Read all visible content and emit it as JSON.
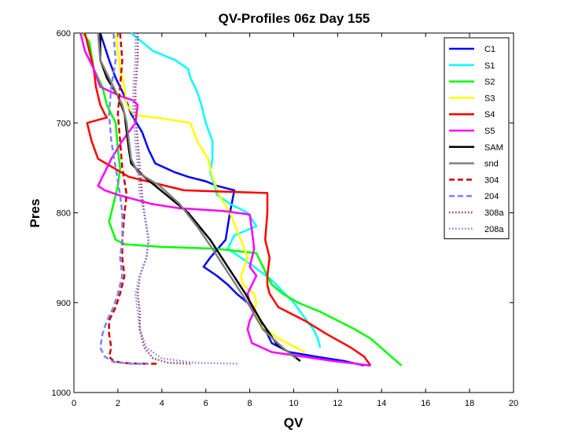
{
  "chart_data": {
    "type": "line",
    "title": "QV-Profiles 06z Day 155",
    "xlabel": "QV",
    "ylabel": "Pres",
    "xlim": [
      0,
      20
    ],
    "ylim": [
      1000,
      600
    ],
    "y_reversed": true,
    "xticks": [
      "0",
      "2",
      "4",
      "6",
      "8",
      "10",
      "12",
      "14",
      "16",
      "18",
      "20"
    ],
    "yticks": [
      "600",
      "700",
      "800",
      "900",
      "1000"
    ],
    "grid": false,
    "legend_position": "top-right",
    "series": [
      {
        "name": "C1",
        "color": "#0000ff",
        "style": "solid",
        "x": [
          1.2,
          1.4,
          1.6,
          1.9,
          2.3,
          2.6,
          3.1,
          3.4,
          3.7,
          4.6,
          5.2,
          6.0,
          6.5,
          7.3,
          7.1,
          6.9,
          6.2,
          5.9,
          6.5,
          7.0,
          7.4,
          7.9,
          8.3,
          8.7,
          9.0,
          9.8,
          11.0,
          12.3,
          13.2
        ],
        "y": [
          600,
          615,
          630,
          650,
          670,
          690,
          710,
          730,
          745,
          755,
          760,
          765,
          770,
          775,
          800,
          830,
          850,
          860,
          870,
          880,
          890,
          900,
          915,
          930,
          945,
          955,
          960,
          965,
          970
        ]
      },
      {
        "name": "S1",
        "color": "#00ffff",
        "style": "solid",
        "x": [
          2.6,
          3.6,
          4.6,
          5.2,
          5.3,
          5.6,
          5.8,
          6.0,
          6.3,
          6.3,
          6.2,
          6.4,
          6.5,
          7.1,
          7.9,
          8.3,
          7.8,
          7.3,
          7.0,
          7.6,
          8.2,
          9.0,
          10.0,
          10.6,
          10.9,
          11.1,
          11.2
        ],
        "y": [
          600,
          620,
          630,
          640,
          650,
          665,
          680,
          700,
          720,
          740,
          755,
          770,
          780,
          790,
          800,
          815,
          820,
          825,
          840,
          850,
          860,
          875,
          900,
          920,
          930,
          940,
          950
        ]
      },
      {
        "name": "S2",
        "color": "#00ff00",
        "style": "solid",
        "x": [
          0.4,
          0.7,
          0.9,
          1.3,
          1.5,
          1.9,
          2.0,
          2.1,
          2.0,
          1.8,
          1.6,
          1.9,
          2.3,
          4.0,
          6.5,
          8.3,
          8.5,
          8.8,
          9.0,
          9.5,
          10.2,
          11.2,
          12.0,
          12.8,
          13.5,
          14.2,
          14.9
        ],
        "y": [
          600,
          610,
          640,
          660,
          680,
          700,
          730,
          750,
          770,
          790,
          810,
          830,
          835,
          838,
          840,
          845,
          855,
          870,
          880,
          890,
          900,
          910,
          920,
          930,
          940,
          955,
          970
        ]
      },
      {
        "name": "S3",
        "color": "#ffff00",
        "style": "solid",
        "x": [
          1.9,
          2.0,
          2.1,
          2.3,
          2.4,
          2.7,
          3.0,
          4.0,
          5.3,
          5.6,
          6.1,
          6.3,
          6.6,
          7.1,
          7.6,
          7.9,
          7.6,
          7.7,
          8.2,
          8.3,
          8.2,
          8.5,
          9.3,
          10.5
        ],
        "y": [
          600,
          620,
          640,
          660,
          680,
          690,
          692,
          695,
          700,
          720,
          740,
          760,
          780,
          800,
          830,
          850,
          870,
          880,
          890,
          900,
          910,
          925,
          940,
          955
        ]
      },
      {
        "name": "S4",
        "color": "#ff0000",
        "style": "solid",
        "x": [
          0.5,
          0.7,
          0.9,
          1.0,
          1.2,
          1.4,
          1.5,
          1.2,
          0.6,
          0.8,
          1.1,
          2.5,
          5.0,
          8.8,
          8.8,
          8.7,
          8.9,
          8.8,
          8.8,
          8.9,
          9.3,
          10.5,
          11.5,
          12.6,
          13.2,
          13.5
        ],
        "y": [
          600,
          620,
          640,
          660,
          680,
          690,
          694,
          696,
          700,
          720,
          740,
          760,
          775,
          778,
          800,
          830,
          850,
          870,
          880,
          890,
          905,
          920,
          935,
          950,
          960,
          970
        ]
      },
      {
        "name": "S5",
        "color": "#ff00ff",
        "style": "solid",
        "x": [
          0.3,
          0.5,
          0.9,
          1.2,
          2.1,
          2.7,
          2.9,
          2.8,
          2.2,
          1.7,
          1.3,
          1.1,
          1.4,
          2.0,
          3.5,
          4.8,
          6.8,
          8.0,
          8.1,
          8.2,
          8.0,
          8.3,
          8.1,
          7.9,
          8.0,
          8.2,
          8.0,
          7.9,
          8.1,
          9.0,
          10.4,
          11.8,
          12.5,
          13.5
        ],
        "y": [
          600,
          620,
          640,
          660,
          670,
          675,
          680,
          700,
          720,
          740,
          760,
          770,
          775,
          780,
          790,
          795,
          798,
          802,
          820,
          840,
          860,
          870,
          880,
          890,
          900,
          910,
          920,
          930,
          945,
          955,
          960,
          965,
          967,
          970
        ]
      },
      {
        "name": "SAM",
        "color": "#000000",
        "style": "solid",
        "width": 2.5,
        "x": [
          1.2,
          1.2,
          1.5,
          2.0,
          2.3,
          2.4,
          2.5,
          2.6,
          3.2,
          4.2,
          5.2,
          6.2,
          7.0,
          7.8,
          8.5,
          9.2,
          10.3
        ],
        "y": [
          600,
          630,
          650,
          670,
          690,
          710,
          730,
          745,
          760,
          780,
          800,
          830,
          860,
          890,
          920,
          945,
          965
        ]
      },
      {
        "name": "snd",
        "color": "#808080",
        "style": "solid",
        "width": 2.5,
        "x": [
          1.1,
          1.2,
          1.6,
          2.2,
          2.4,
          2.5,
          2.6,
          2.9,
          3.9,
          4.8,
          5.6,
          6.3,
          7.1,
          7.9,
          8.6,
          9.5,
          10.1
        ],
        "y": [
          600,
          630,
          650,
          680,
          700,
          720,
          740,
          755,
          770,
          790,
          815,
          840,
          870,
          900,
          930,
          950,
          962
        ]
      },
      {
        "name": "304",
        "color": "#cc0000",
        "style": "dashed",
        "x": [
          2.1,
          2.2,
          2.1,
          2.0,
          2.1,
          2.2,
          2.4,
          2.3,
          2.2,
          2.2,
          2.3,
          2.1,
          1.9,
          1.6,
          1.6,
          1.7,
          1.6,
          1.8,
          2.2,
          3.0,
          3.8
        ],
        "y": [
          600,
          630,
          660,
          690,
          720,
          750,
          780,
          800,
          830,
          850,
          870,
          890,
          905,
          920,
          935,
          950,
          960,
          965,
          967,
          968,
          968
        ]
      },
      {
        "name": "204",
        "color": "#8080ff",
        "style": "dashed",
        "x": [
          1.8,
          1.9,
          1.7,
          1.6,
          1.7,
          1.9,
          2.1,
          2.2,
          2.2,
          2.1,
          2.2,
          2.0,
          1.8,
          1.5,
          1.3,
          1.2,
          1.4,
          1.8,
          2.6,
          3.4
        ],
        "y": [
          600,
          630,
          660,
          690,
          720,
          750,
          780,
          800,
          830,
          850,
          870,
          890,
          905,
          920,
          935,
          950,
          960,
          966,
          968,
          968
        ]
      },
      {
        "name": "308a",
        "color": "#a03050",
        "style": "dotted",
        "x": [
          2.9,
          2.9,
          2.8,
          2.8,
          2.9,
          3.0,
          3.1,
          3.2,
          3.4,
          3.3,
          3.0,
          2.9,
          3.0,
          3.0,
          3.2,
          3.6,
          4.3,
          5.3
        ],
        "y": [
          600,
          630,
          660,
          690,
          720,
          750,
          780,
          800,
          830,
          850,
          870,
          890,
          910,
          930,
          950,
          962,
          967,
          968
        ]
      },
      {
        "name": "208a",
        "color": "#8080ff",
        "style": "dotted",
        "x": [
          2.8,
          2.8,
          2.7,
          2.7,
          2.8,
          2.9,
          3.0,
          3.2,
          3.4,
          3.3,
          3.0,
          2.8,
          2.9,
          3.0,
          3.3,
          4.0,
          5.5,
          7.5
        ],
        "y": [
          600,
          630,
          660,
          690,
          720,
          750,
          780,
          800,
          830,
          850,
          870,
          890,
          910,
          930,
          950,
          962,
          967,
          968
        ]
      }
    ]
  }
}
